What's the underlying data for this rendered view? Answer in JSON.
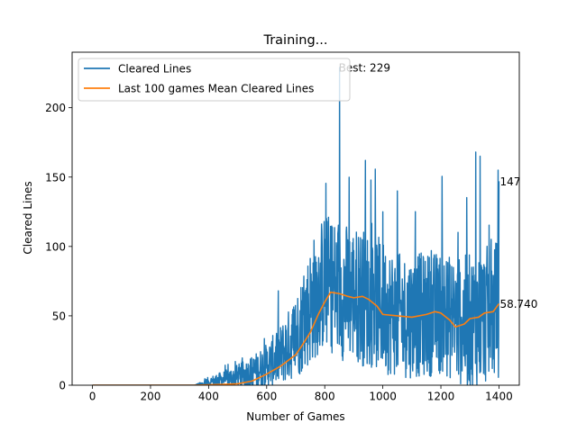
{
  "chart_data": {
    "type": "line",
    "title": "Training...",
    "xlabel": "Number of Games",
    "ylabel": "Cleared Lines",
    "xlim": [
      -70,
      1470
    ],
    "ylim": [
      0,
      240
    ],
    "xticks": [
      0,
      200,
      400,
      600,
      800,
      1000,
      1200,
      1400
    ],
    "yticks": [
      0,
      50,
      100,
      150,
      200
    ],
    "grid": false,
    "legend_position": "top-left",
    "series": [
      {
        "name": "Cleared Lines",
        "color": "#1f77b4",
        "style": "noisy-per-game",
        "x": [
          0,
          100,
          200,
          300,
          350,
          380,
          400,
          450,
          500,
          550,
          600,
          650,
          700,
          730,
          760,
          800,
          830,
          850,
          900,
          950,
          1000,
          1050,
          1100,
          1150,
          1200,
          1250,
          1300,
          1350,
          1400
        ],
        "y": [
          0,
          0,
          0,
          0,
          0,
          1,
          2,
          4,
          6,
          9,
          14,
          22,
          35,
          48,
          62,
          75,
          72,
          68,
          66,
          62,
          57,
          50,
          50,
          51,
          52,
          47,
          45,
          50,
          55
        ],
        "noise": [
          0,
          0,
          0,
          0,
          0,
          2,
          4,
          6,
          9,
          12,
          16,
          22,
          30,
          38,
          45,
          50,
          50,
          50,
          50,
          50,
          48,
          45,
          45,
          45,
          45,
          45,
          50,
          50,
          50
        ],
        "peaks": [
          [
            851,
            229
          ],
          [
            940,
            162
          ],
          [
            1000,
            125
          ],
          [
            1050,
            140
          ],
          [
            1320,
            168
          ],
          [
            1335,
            165
          ],
          [
            1397,
            155
          ]
        ],
        "last_value": 147
      },
      {
        "name": "Last 100 games Mean Cleared Lines",
        "color": "#ff7f0e",
        "x": [
          0,
          200,
          300,
          350,
          400,
          450,
          500,
          550,
          600,
          650,
          700,
          720,
          750,
          780,
          800,
          820,
          850,
          880,
          900,
          930,
          950,
          980,
          1000,
          1050,
          1100,
          1150,
          1180,
          1200,
          1230,
          1250,
          1280,
          1300,
          1330,
          1350,
          1380,
          1400
        ],
        "y": [
          0,
          0,
          0,
          0,
          0.3,
          0.6,
          1,
          3,
          8,
          14,
          22,
          28,
          38,
          52,
          60,
          67,
          66,
          64,
          63,
          64,
          62,
          57,
          51,
          50,
          49,
          51,
          53,
          52,
          47,
          42,
          44,
          48,
          49,
          52,
          53,
          58.74
        ],
        "last_value": 58.74
      }
    ],
    "annotations": [
      {
        "text": "Best: 229",
        "x": 851,
        "y": 229
      },
      {
        "text": "147",
        "x": 1400,
        "y": 147
      },
      {
        "text": "58.740",
        "x": 1400,
        "y": 58.74
      }
    ]
  }
}
